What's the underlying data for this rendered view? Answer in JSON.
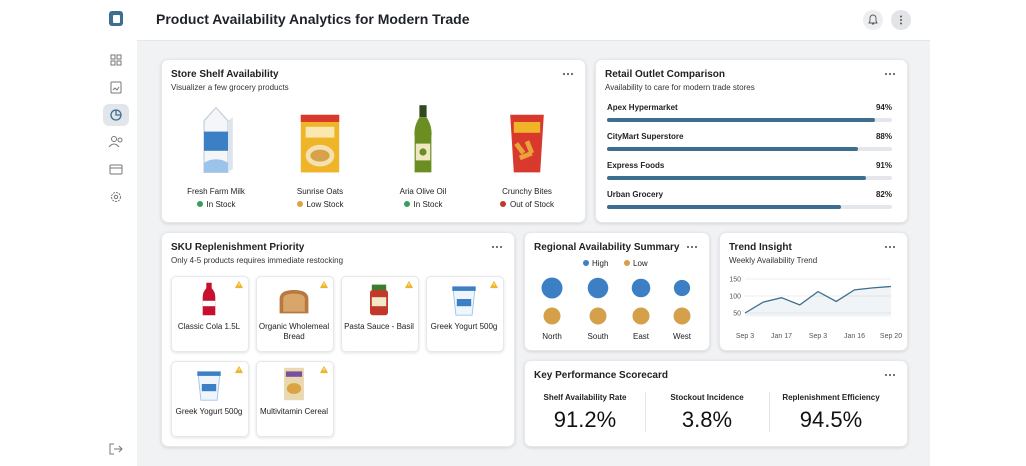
{
  "header": {
    "title": "Product Availability Analytics for Modern Trade"
  },
  "shelf": {
    "title": "Store Shelf Availability",
    "subtitle": "Visualizer a few grocery products",
    "products": [
      {
        "name": "Fresh Farm Milk",
        "status": "In Stock",
        "status_color": "#3a9d5d"
      },
      {
        "name": "Sunrise Oats",
        "status": "Low Stock",
        "status_color": "#d9a441"
      },
      {
        "name": "Aria Olive Oil",
        "status": "In Stock",
        "status_color": "#3a9d5d"
      },
      {
        "name": "Crunchy Bites",
        "status": "Out of Stock",
        "status_color": "#c0392b"
      }
    ]
  },
  "outlets": {
    "title": "Retail Outlet Comparison",
    "subtitle": "Availability to care for modern trade stores",
    "color": "#3d6e8f",
    "items": [
      {
        "name": "Apex Hypermarket",
        "value": 94,
        "label": "94%"
      },
      {
        "name": "CityMart Superstore",
        "value": 88,
        "label": "88%"
      },
      {
        "name": "Express Foods",
        "value": 91,
        "label": "91%"
      },
      {
        "name": "Urban Grocery",
        "value": 82,
        "label": "82%"
      }
    ]
  },
  "sku": {
    "title": "SKU Replenishment Priority",
    "subtitle": "Only 4-5 products requires immediate restocking",
    "items": [
      "Classic Cola 1.5L",
      "Organic Wholemeal Bread",
      "Pasta Sauce - Basil",
      "Greek Yogurt 500g",
      "Greek Yogurt 500g",
      "Multivitamin Cereal"
    ]
  },
  "chart_data": [
    {
      "type": "dot",
      "title": "Regional Availability Summary",
      "categories": [
        "North",
        "South",
        "East",
        "West"
      ],
      "series": [
        {
          "name": "High",
          "color": "#3d7fc4",
          "values": [
            92,
            88,
            72,
            55
          ]
        },
        {
          "name": "Low",
          "color": "#d4a04a",
          "values": [
            50,
            50,
            50,
            50
          ]
        }
      ]
    },
    {
      "type": "line",
      "title": "Trend Insight",
      "subtitle": "Weekly Availability Trend",
      "categories": [
        "Sep 3",
        null,
        "Jan 17",
        null,
        "Sep 3",
        null,
        "Jan 16",
        null,
        "Sep 20"
      ],
      "values": [
        50,
        82,
        95,
        74,
        113,
        84,
        118,
        124,
        128
      ],
      "color": "#3d6e8f",
      "ylim": [
        40,
        160
      ],
      "yticks": [
        50,
        100,
        150
      ],
      "grid": true
    }
  ],
  "kpi": {
    "title": "Key Performance Scorecard",
    "items": [
      {
        "label": "Shelf Availability Rate",
        "value": "91.2%"
      },
      {
        "label": "Stockout Incidence",
        "value": "3.8%"
      },
      {
        "label": "Replenishment Efficiency",
        "value": "94.5%"
      }
    ]
  }
}
